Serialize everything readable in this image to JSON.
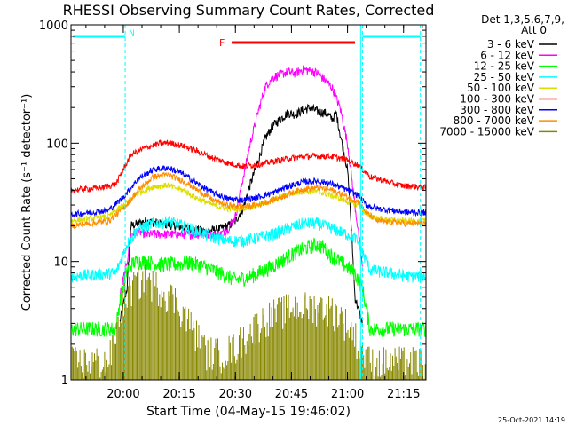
{
  "chart_data": {
    "type": "line",
    "title": "RHESSI Observing Summary Count Rates, Corrected",
    "xlabel": "Start Time (04-May-15 19:46:02)",
    "ylabel": "Corrected Count Rate (s⁻¹ detector⁻¹)",
    "yscale": "log",
    "ylim": [
      1,
      1000
    ],
    "xlim_minutes": [
      0,
      95
    ],
    "y_ticks": [
      {
        "value": 1,
        "label": "1"
      },
      {
        "value": 10,
        "label": "10"
      },
      {
        "value": 100,
        "label": "100"
      },
      {
        "value": 1000,
        "label": "1000"
      }
    ],
    "x_ticks": [
      {
        "minute": 14,
        "label": "20:00"
      },
      {
        "minute": 29,
        "label": "20:15"
      },
      {
        "minute": 44,
        "label": "20:30"
      },
      {
        "minute": 59,
        "label": "20:45"
      },
      {
        "minute": 74,
        "label": "21:00"
      },
      {
        "minute": 89,
        "label": "21:15"
      }
    ],
    "legend_header": [
      "Det 1,3,5,6,7,9,",
      "Att 0"
    ],
    "legend_position": "right",
    "series": [
      {
        "name": "3 - 6 keV",
        "color": "#000000",
        "noise": 0.03,
        "values": [
          [
            0,
            null
          ],
          [
            12.5,
            null
          ],
          [
            13,
            3
          ],
          [
            15,
            6
          ],
          [
            16,
            20
          ],
          [
            18,
            21
          ],
          [
            20,
            22
          ],
          [
            24,
            21
          ],
          [
            28,
            20
          ],
          [
            32,
            19
          ],
          [
            36,
            18
          ],
          [
            40,
            19
          ],
          [
            42,
            20
          ],
          [
            44,
            22
          ],
          [
            46,
            28
          ],
          [
            48,
            45
          ],
          [
            50,
            70
          ],
          [
            52,
            110
          ],
          [
            54,
            140
          ],
          [
            56,
            160
          ],
          [
            58,
            180
          ],
          [
            60,
            175
          ],
          [
            62,
            190
          ],
          [
            64,
            200
          ],
          [
            66,
            185
          ],
          [
            68,
            180
          ],
          [
            70,
            160
          ],
          [
            71,
            180
          ],
          [
            72,
            120
          ],
          [
            74,
            60
          ],
          [
            75,
            20
          ],
          [
            76,
            5
          ],
          [
            78,
            3
          ],
          [
            80,
            null
          ],
          [
            95,
            null
          ]
        ]
      },
      {
        "name": "6 - 12 keV",
        "color": "#ff00ff",
        "noise": 0.03,
        "values": [
          [
            0,
            null
          ],
          [
            12.5,
            null
          ],
          [
            13,
            5
          ],
          [
            15,
            10
          ],
          [
            16,
            17
          ],
          [
            18,
            18
          ],
          [
            20,
            17
          ],
          [
            24,
            17
          ],
          [
            28,
            17
          ],
          [
            32,
            17
          ],
          [
            36,
            17
          ],
          [
            40,
            17
          ],
          [
            42,
            19
          ],
          [
            44,
            24
          ],
          [
            46,
            50
          ],
          [
            48,
            100
          ],
          [
            50,
            180
          ],
          [
            52,
            300
          ],
          [
            54,
            360
          ],
          [
            56,
            380
          ],
          [
            58,
            400
          ],
          [
            60,
            390
          ],
          [
            62,
            420
          ],
          [
            64,
            410
          ],
          [
            66,
            390
          ],
          [
            68,
            340
          ],
          [
            70,
            290
          ],
          [
            72,
            200
          ],
          [
            74,
            100
          ],
          [
            76,
            30
          ],
          [
            78,
            9
          ],
          [
            80,
            null
          ],
          [
            95,
            null
          ]
        ]
      },
      {
        "name": "12 - 25 keV",
        "color": "#00ff00",
        "noise": 0.05,
        "values": [
          [
            0,
            2.7
          ],
          [
            12,
            2.7
          ],
          [
            13,
            4.5
          ],
          [
            15,
            8.5
          ],
          [
            17,
            10
          ],
          [
            20,
            10
          ],
          [
            24,
            9.5
          ],
          [
            28,
            9.5
          ],
          [
            32,
            9.8
          ],
          [
            36,
            9
          ],
          [
            40,
            8
          ],
          [
            44,
            7
          ],
          [
            48,
            7.5
          ],
          [
            52,
            8.5
          ],
          [
            56,
            10
          ],
          [
            60,
            12
          ],
          [
            64,
            13.5
          ],
          [
            66,
            14
          ],
          [
            68,
            13
          ],
          [
            70,
            11
          ],
          [
            72,
            10
          ],
          [
            74,
            9
          ],
          [
            76,
            8
          ],
          [
            78,
            6
          ],
          [
            80,
            2.7
          ],
          [
            95,
            2.7
          ]
        ]
      },
      {
        "name": "25 - 50 keV",
        "color": "#00ffff",
        "noise": 0.04,
        "values": [
          [
            0,
            7.5
          ],
          [
            12,
            8
          ],
          [
            15,
            14
          ],
          [
            18,
            19
          ],
          [
            22,
            21
          ],
          [
            26,
            22
          ],
          [
            30,
            20
          ],
          [
            34,
            18
          ],
          [
            38,
            16
          ],
          [
            42,
            15
          ],
          [
            46,
            15
          ],
          [
            50,
            16
          ],
          [
            54,
            17
          ],
          [
            58,
            19
          ],
          [
            62,
            21
          ],
          [
            66,
            21
          ],
          [
            70,
            19
          ],
          [
            74,
            17
          ],
          [
            76,
            16
          ],
          [
            78,
            12
          ],
          [
            80,
            8.5
          ],
          [
            85,
            8
          ],
          [
            90,
            7.5
          ],
          [
            95,
            7.5
          ]
        ]
      },
      {
        "name": "50 - 100 keV",
        "color": "#dddd00",
        "noise": 0.02,
        "values": [
          [
            0,
            22
          ],
          [
            10,
            24
          ],
          [
            14,
            30
          ],
          [
            18,
            38
          ],
          [
            22,
            43
          ],
          [
            26,
            44
          ],
          [
            30,
            40
          ],
          [
            34,
            34
          ],
          [
            38,
            30
          ],
          [
            42,
            28
          ],
          [
            46,
            28
          ],
          [
            50,
            30
          ],
          [
            54,
            33
          ],
          [
            58,
            37
          ],
          [
            62,
            39
          ],
          [
            66,
            39
          ],
          [
            70,
            36
          ],
          [
            74,
            32
          ],
          [
            77,
            30
          ],
          [
            79,
            25
          ],
          [
            82,
            23
          ],
          [
            90,
            22
          ],
          [
            95,
            22
          ]
        ]
      },
      {
        "name": "100 - 300 keV",
        "color": "#ff0000",
        "noise": 0.02,
        "values": [
          [
            0,
            40
          ],
          [
            8,
            42
          ],
          [
            12,
            45
          ],
          [
            14,
            60
          ],
          [
            16,
            80
          ],
          [
            20,
            92
          ],
          [
            24,
            100
          ],
          [
            26,
            101
          ],
          [
            30,
            95
          ],
          [
            34,
            85
          ],
          [
            38,
            75
          ],
          [
            42,
            68
          ],
          [
            46,
            64
          ],
          [
            50,
            66
          ],
          [
            54,
            70
          ],
          [
            58,
            74
          ],
          [
            62,
            77
          ],
          [
            66,
            78
          ],
          [
            70,
            77
          ],
          [
            74,
            72
          ],
          [
            77,
            65
          ],
          [
            80,
            52
          ],
          [
            84,
            48
          ],
          [
            88,
            44
          ],
          [
            92,
            43
          ],
          [
            95,
            42
          ]
        ]
      },
      {
        "name": "300 - 800 keV",
        "color": "#0000ff",
        "noise": 0.02,
        "values": [
          [
            0,
            25
          ],
          [
            10,
            27
          ],
          [
            14,
            35
          ],
          [
            18,
            50
          ],
          [
            22,
            60
          ],
          [
            26,
            62
          ],
          [
            30,
            55
          ],
          [
            34,
            45
          ],
          [
            38,
            38
          ],
          [
            42,
            34
          ],
          [
            46,
            33
          ],
          [
            50,
            35
          ],
          [
            54,
            38
          ],
          [
            58,
            43
          ],
          [
            62,
            47
          ],
          [
            66,
            48
          ],
          [
            70,
            45
          ],
          [
            74,
            40
          ],
          [
            77,
            36
          ],
          [
            79,
            30
          ],
          [
            82,
            28
          ],
          [
            90,
            26
          ],
          [
            95,
            26
          ]
        ]
      },
      {
        "name": "800 - 7000 keV",
        "color": "#ff8c00",
        "noise": 0.02,
        "values": [
          [
            0,
            20
          ],
          [
            10,
            22
          ],
          [
            14,
            28
          ],
          [
            18,
            40
          ],
          [
            22,
            52
          ],
          [
            26,
            54
          ],
          [
            30,
            48
          ],
          [
            34,
            40
          ],
          [
            38,
            33
          ],
          [
            42,
            30
          ],
          [
            46,
            29
          ],
          [
            50,
            30
          ],
          [
            54,
            33
          ],
          [
            58,
            37
          ],
          [
            62,
            41
          ],
          [
            66,
            42
          ],
          [
            70,
            40
          ],
          [
            74,
            35
          ],
          [
            77,
            32
          ],
          [
            79,
            26
          ],
          [
            82,
            22
          ],
          [
            90,
            21
          ],
          [
            95,
            21
          ]
        ]
      },
      {
        "name": "7000 - 15000 keV",
        "color": "#888800",
        "noise": 0,
        "values": [
          [
            0,
            1.2
          ],
          [
            10,
            1.2
          ],
          [
            12,
            2
          ],
          [
            14,
            4
          ],
          [
            17,
            5.5
          ],
          [
            20,
            6
          ],
          [
            24,
            5
          ],
          [
            28,
            4
          ],
          [
            32,
            2.5
          ],
          [
            36,
            1.5
          ],
          [
            40,
            1.4
          ],
          [
            44,
            1.6
          ],
          [
            48,
            2.2
          ],
          [
            52,
            2.8
          ],
          [
            56,
            3.2
          ],
          [
            60,
            3.5
          ],
          [
            64,
            3.5
          ],
          [
            68,
            3.5
          ],
          [
            72,
            3
          ],
          [
            76,
            2
          ],
          [
            78,
            1.5
          ],
          [
            80,
            1.2
          ],
          [
            95,
            1.2
          ]
        ]
      }
    ],
    "vertical_lines": [
      {
        "minute": 14.5,
        "color": "#00ffff",
        "style": "dashed"
      },
      {
        "minute": 77.5,
        "color": "#00ffff",
        "style": "solid"
      },
      {
        "minute": 78,
        "color": "#00ffff",
        "style": "dashed"
      },
      {
        "minute": 93.5,
        "color": "#00ffff",
        "style": "dashed"
      }
    ],
    "flags": [
      {
        "label": "N",
        "color": "#00ffff",
        "start_minute": 0.5,
        "end_minute": 14.5
      },
      {
        "label": "",
        "color": "#00ffff",
        "start_minute": 78,
        "end_minute": 93.5
      },
      {
        "label": "F",
        "color": "#ff0000",
        "start_minute": 43,
        "end_minute": 76
      }
    ],
    "timestamp": "25-Oct-2021 14:19"
  }
}
